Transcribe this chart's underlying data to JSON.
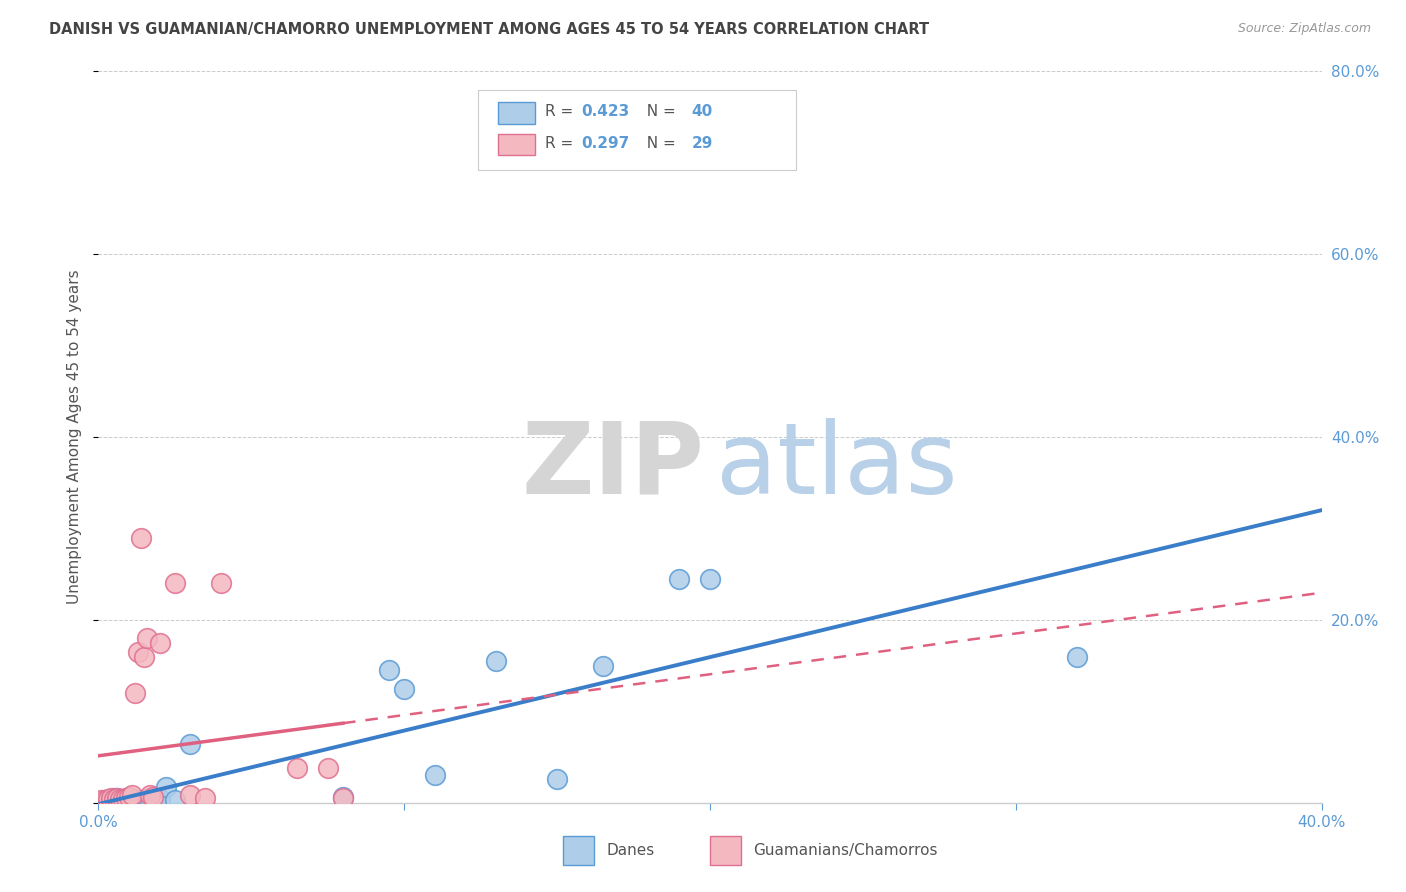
{
  "title": "DANISH VS GUAMANIAN/CHAMORRO UNEMPLOYMENT AMONG AGES 45 TO 54 YEARS CORRELATION CHART",
  "source": "Source: ZipAtlas.com",
  "ylabel": "Unemployment Among Ages 45 to 54 years",
  "xlim": [
    0.0,
    0.4
  ],
  "ylim": [
    0.0,
    0.8
  ],
  "xticks": [
    0.0,
    0.1,
    0.2,
    0.3,
    0.4
  ],
  "xticklabels": [
    "0.0%",
    "",
    "",
    "",
    "40.0%"
  ],
  "yticks_right": [
    0.2,
    0.4,
    0.6,
    0.8
  ],
  "yticklabels_right": [
    "20.0%",
    "40.0%",
    "60.0%",
    "80.0%"
  ],
  "grid_yticks": [
    0.0,
    0.2,
    0.4,
    0.6,
    0.8
  ],
  "danes_color": "#aecde8",
  "danes_edge_color": "#5b9bd5",
  "guam_color": "#f4b8c1",
  "guam_edge_color": "#e07090",
  "dane_R": 0.423,
  "dane_N": 40,
  "guam_R": 0.297,
  "guam_N": 29,
  "legend_label_danes": "Danes",
  "legend_label_guam": "Guamanians/Chamorros",
  "danes_line_color": "#3a7dc9",
  "guam_line_color": "#e06080",
  "grid_color": "#cccccc",
  "bg_color": "#ffffff",
  "title_color": "#444444",
  "tick_color": "#5b9bd5",
  "danes_x": [
    0.002,
    0.003,
    0.004,
    0.004,
    0.005,
    0.005,
    0.005,
    0.006,
    0.006,
    0.007,
    0.008,
    0.008,
    0.009,
    0.009,
    0.01,
    0.01,
    0.011,
    0.011,
    0.012,
    0.013,
    0.014,
    0.015,
    0.016,
    0.017,
    0.018,
    0.019,
    0.02,
    0.022,
    0.025,
    0.03,
    0.08,
    0.095,
    0.1,
    0.11,
    0.13,
    0.15,
    0.165,
    0.19,
    0.2,
    0.32
  ],
  "danes_y": [
    0.002,
    0.003,
    0.002,
    0.004,
    0.003,
    0.005,
    0.004,
    0.003,
    0.005,
    0.003,
    0.002,
    0.004,
    0.002,
    0.003,
    0.003,
    0.004,
    0.003,
    0.004,
    0.003,
    0.002,
    0.003,
    0.003,
    0.004,
    0.003,
    0.004,
    0.003,
    0.004,
    0.017,
    0.003,
    0.064,
    0.006,
    0.145,
    0.125,
    0.03,
    0.155,
    0.026,
    0.15,
    0.245,
    0.245,
    0.16
  ],
  "guam_x": [
    0.001,
    0.002,
    0.003,
    0.003,
    0.004,
    0.004,
    0.005,
    0.006,
    0.006,
    0.007,
    0.008,
    0.009,
    0.01,
    0.011,
    0.012,
    0.013,
    0.014,
    0.015,
    0.016,
    0.017,
    0.018,
    0.02,
    0.025,
    0.03,
    0.035,
    0.04,
    0.065,
    0.075,
    0.08
  ],
  "guam_y": [
    0.003,
    0.003,
    0.002,
    0.004,
    0.003,
    0.005,
    0.004,
    0.003,
    0.005,
    0.004,
    0.004,
    0.005,
    0.006,
    0.008,
    0.12,
    0.165,
    0.29,
    0.16,
    0.18,
    0.008,
    0.006,
    0.175,
    0.24,
    0.009,
    0.005,
    0.24,
    0.038,
    0.038,
    0.005
  ]
}
